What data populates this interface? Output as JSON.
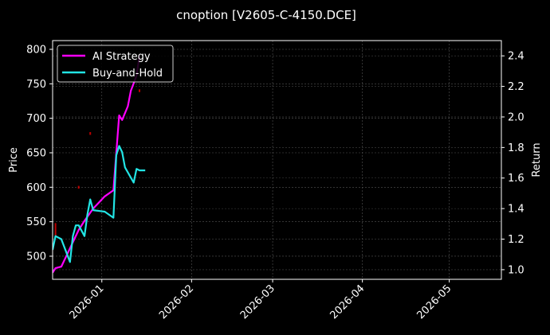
{
  "chart_data": {
    "type": "line",
    "title": "cnoption [V2605-C-4150.DCE]",
    "xlabel": "",
    "ylabel": "Price",
    "ylabel_right": "Return",
    "ylim": [
      466.5,
      812.7
    ],
    "ylim_right": [
      0.937,
      2.5
    ],
    "xlim": [
      "2025-12-15",
      "2026-05-19"
    ],
    "grid": true,
    "legend_position": "upper left",
    "x_ticks": [
      "2026-01",
      "2026-02",
      "2026-03",
      "2026-04",
      "2026-05"
    ],
    "y_ticks_left": [
      500,
      550,
      600,
      650,
      700,
      750,
      800
    ],
    "y_ticks_right": [
      "1.0",
      "1.2",
      "1.4",
      "1.6",
      "1.8",
      "2.0",
      "2.2",
      "2.4"
    ],
    "series": [
      {
        "name": "AI Strategy",
        "axis": "right",
        "color": "#ff00ff",
        "x": [
          "2025-12-15",
          "2025-12-16",
          "2025-12-18",
          "2025-12-20",
          "2025-12-22",
          "2025-12-24",
          "2025-12-26",
          "2025-12-29",
          "2025-12-31",
          "2026-01-02",
          "2026-01-05",
          "2026-01-07",
          "2026-01-08",
          "2026-01-10",
          "2026-01-11",
          "2026-01-13",
          "2026-01-14"
        ],
        "values": [
          0.98,
          1.01,
          1.02,
          1.1,
          1.18,
          1.26,
          1.32,
          1.4,
          1.44,
          1.48,
          1.52,
          2.01,
          1.98,
          2.07,
          2.17,
          2.27,
          2.4
        ]
      },
      {
        "name": "Buy-and-Hold",
        "axis": "right",
        "color": "#22e5e5",
        "x": [
          "2025-12-15",
          "2025-12-16",
          "2025-12-18",
          "2025-12-20",
          "2025-12-21",
          "2025-12-22",
          "2025-12-23",
          "2025-12-24",
          "2025-12-26",
          "2025-12-27",
          "2025-12-28",
          "2025-12-29",
          "2026-01-02",
          "2026-01-05",
          "2026-01-06",
          "2026-01-07",
          "2026-01-08",
          "2026-01-09",
          "2026-01-12",
          "2026-01-13",
          "2026-01-14",
          "2026-01-16"
        ],
        "values": [
          1.13,
          1.22,
          1.2,
          1.1,
          1.05,
          1.22,
          1.29,
          1.29,
          1.22,
          1.36,
          1.46,
          1.39,
          1.38,
          1.34,
          1.75,
          1.81,
          1.77,
          1.67,
          1.57,
          1.66,
          1.65,
          1.65
        ]
      }
    ],
    "candles_note": "faint red price candles (left axis)",
    "candles": [
      {
        "x": "2025-12-16",
        "low": 530,
        "high": 548
      },
      {
        "x": "2025-12-24",
        "low": 598,
        "high": 602
      },
      {
        "x": "2025-12-28",
        "low": 676,
        "high": 680
      },
      {
        "x": "2026-01-14",
        "low": 738,
        "high": 742
      }
    ]
  },
  "legend": {
    "items": [
      {
        "label": "AI Strategy",
        "color": "#ff00ff"
      },
      {
        "label": "Buy-and-Hold",
        "color": "#22e5e5"
      }
    ]
  }
}
